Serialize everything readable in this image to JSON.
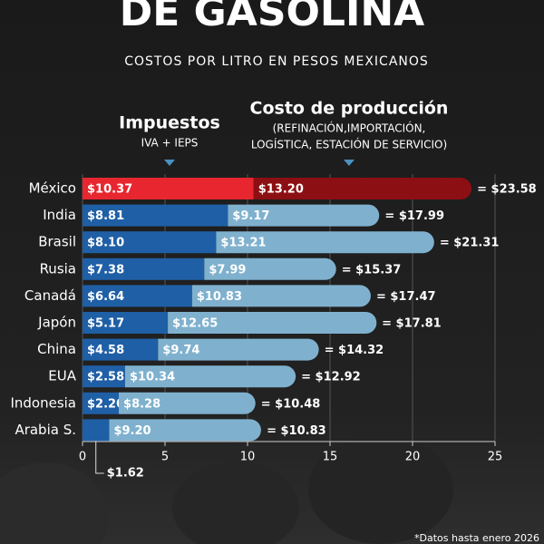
{
  "chart_data": {
    "type": "stacked-barh",
    "title": "DE GASOLINA",
    "subtitle": "COSTOS POR LITRO EN PESOS MEXICANOS",
    "categories": [
      "México",
      "India",
      "Brasil",
      "Rusia",
      "Canadá",
      "Japón",
      "China",
      "EUA",
      "Indonesia",
      "Arabia S."
    ],
    "series": [
      {
        "name": "Impuestos",
        "note": [
          "IVA + IEPS"
        ],
        "color": "#1f5fa6",
        "colors": [
          "#e8262f",
          "#1f5fa6",
          "#1f5fa6",
          "#1f5fa6",
          "#1f5fa6",
          "#1f5fa6",
          "#1f5fa6",
          "#1f5fa6",
          "#1f5fa6",
          "#1f5fa6"
        ],
        "values": [
          10.37,
          8.81,
          8.1,
          7.38,
          6.64,
          5.17,
          4.58,
          2.58,
          2.2,
          1.62
        ],
        "value_labels": [
          "$10.37",
          "$8.81",
          "$8.10",
          "$7.38",
          "$6.64",
          "$5.17",
          "$4.58",
          "$2.58",
          "$2.20",
          "$1.62"
        ]
      },
      {
        "name": "Costo de producción",
        "note": [
          "(REFINACIÓN,IMPORTACIÓN,",
          "LOGÍSTICA, ESTACIÓN DE SERVICIO)"
        ],
        "color": "#7fb1ce",
        "colors": [
          "#8c0f13",
          "#7fb1ce",
          "#7fb1ce",
          "#7fb1ce",
          "#7fb1ce",
          "#7fb1ce",
          "#7fb1ce",
          "#7fb1ce",
          "#7fb1ce",
          "#7fb1ce"
        ],
        "values": [
          13.2,
          9.17,
          13.21,
          7.99,
          10.83,
          12.65,
          9.74,
          10.34,
          8.28,
          9.2
        ],
        "value_labels": [
          "$13.20",
          "$9.17",
          "$13.21",
          "$7.99",
          "$10.83",
          "$12.65",
          "$9.74",
          "$10.34",
          "$8.28",
          "$9.20"
        ]
      }
    ],
    "totals": {
      "values": [
        23.58,
        17.99,
        21.31,
        15.37,
        17.47,
        17.81,
        14.32,
        12.92,
        10.48,
        10.83
      ],
      "value_labels": [
        "= $23.58",
        "= $17.99",
        "= $21.31",
        "= $15.37",
        "= $17.47",
        "= $17.81",
        "= $14.32",
        "= $12.92",
        "= $10.48",
        "= $10.83"
      ]
    },
    "xlim": [
      0,
      25
    ],
    "xticks": [
      0,
      5,
      10,
      15,
      20,
      25
    ],
    "grid": true,
    "source": "*Datos hasta enero 2026"
  }
}
